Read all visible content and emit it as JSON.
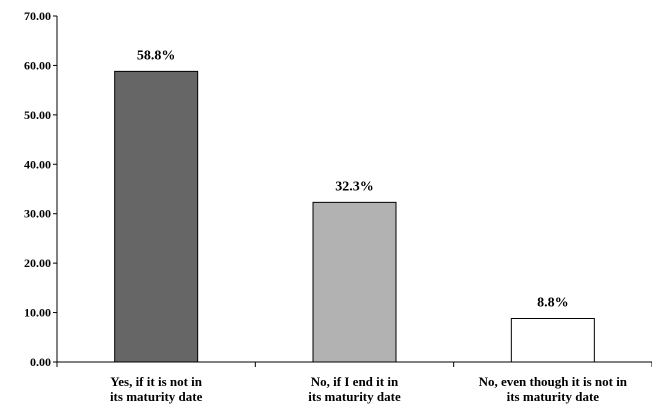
{
  "chart_data": {
    "type": "bar",
    "categories": [
      [
        "Yes, if it is not in",
        "its maturity date"
      ],
      [
        "No, if I end it in",
        "its maturity date"
      ],
      [
        "No, even though it is not in",
        "its maturity date"
      ]
    ],
    "values": [
      58.8,
      32.3,
      8.8
    ],
    "data_labels": [
      "58.8%",
      "32.3%",
      "8.8%"
    ],
    "bar_colors": [
      "#666666",
      "#b2b2b2",
      "#ffffff"
    ],
    "ylim": [
      0,
      70
    ],
    "yticks": [
      0,
      10,
      20,
      30,
      40,
      50,
      60,
      70
    ],
    "ytick_labels": [
      "0.00",
      "10.00",
      "20.00",
      "30.00",
      "40.00",
      "50.00",
      "60.00",
      "70.00"
    ],
    "title": "",
    "xlabel": "",
    "ylabel": "",
    "grid": false,
    "legend": "none"
  }
}
